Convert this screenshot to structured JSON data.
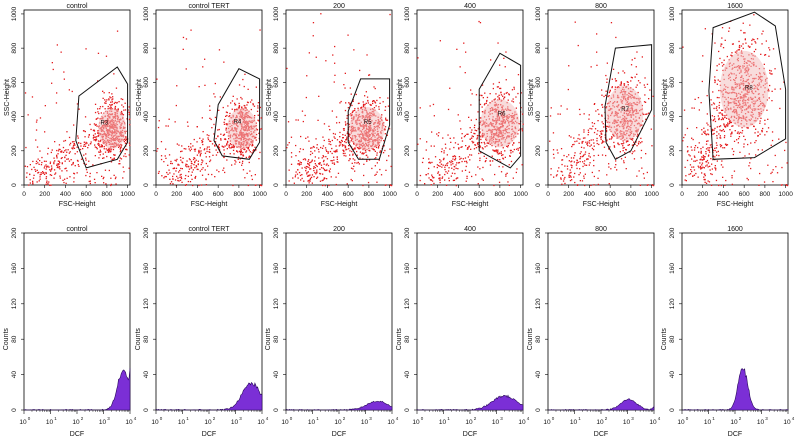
{
  "chart_data": [
    {
      "type": "scatter",
      "panels": [
        {
          "title": "control",
          "gate_label": "R3"
        },
        {
          "title": "control TERT",
          "gate_label": "R4"
        },
        {
          "title": "200",
          "gate_label": "R5"
        },
        {
          "title": "400",
          "gate_label": "R6"
        },
        {
          "title": "800",
          "gate_label": "R7"
        },
        {
          "title": "1600",
          "gate_label": "R8"
        }
      ],
      "xlabel": "FSC-Height",
      "ylabel": "SSC-Height",
      "xlim": [
        0,
        1023
      ],
      "ylim": [
        0,
        1023
      ],
      "xticks": [
        0,
        200,
        400,
        600,
        800,
        1000
      ],
      "yticks": [
        0,
        200,
        400,
        600,
        800,
        1000
      ],
      "point_color": "#e41a1c",
      "gate_color": "#111111"
    },
    {
      "type": "area",
      "panels": [
        {
          "title": "control",
          "peak_counts": 45
        },
        {
          "title": "control TERT",
          "peak_counts": 30
        },
        {
          "title": "200",
          "peak_counts": 10
        },
        {
          "title": "400",
          "peak_counts": 16
        },
        {
          "title": "800",
          "peak_counts": 12
        },
        {
          "title": "1600",
          "peak_counts": 48
        }
      ],
      "xlabel": "DCF",
      "ylabel": "Counts",
      "xscale": "log",
      "xlim": [
        1,
        10000
      ],
      "ylim": [
        0,
        200
      ],
      "xtick_labels": [
        "10",
        "10",
        "10",
        "10",
        "10"
      ],
      "xtick_exponents": [
        "0",
        "1",
        "2",
        "3",
        "4"
      ],
      "yticks": [
        0,
        40,
        80,
        120,
        160,
        200
      ],
      "fill_color": "#7b2fd6"
    }
  ]
}
